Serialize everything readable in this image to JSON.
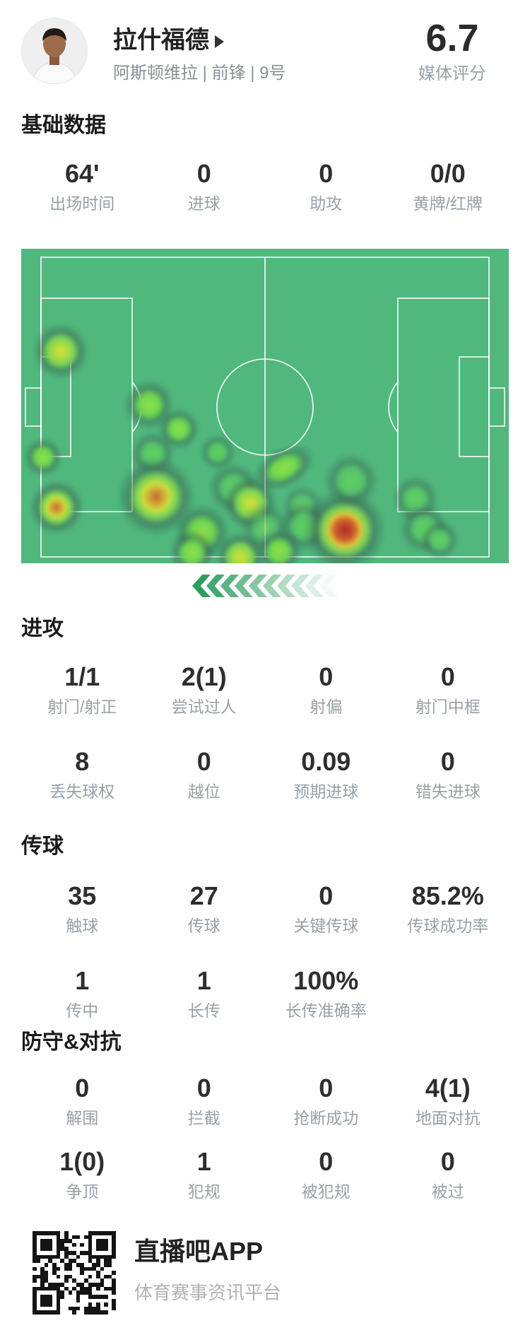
{
  "header": {
    "player_name": "拉什福德",
    "player_meta": "阿斯顿维拉 | 前锋 | 9号",
    "rating": "6.7",
    "rating_label": "媒体评分"
  },
  "sections": {
    "basic": {
      "title": "基础数据",
      "row1": [
        {
          "value": "64'",
          "label": "出场时间"
        },
        {
          "value": "0",
          "label": "进球"
        },
        {
          "value": "0",
          "label": "助攻"
        },
        {
          "value": "0/0",
          "label": "黄牌/红牌"
        }
      ]
    },
    "attack": {
      "title": "进攻",
      "row1": [
        {
          "value": "1/1",
          "label": "射门/射正"
        },
        {
          "value": "2(1)",
          "label": "尝试过人"
        },
        {
          "value": "0",
          "label": "射偏"
        },
        {
          "value": "0",
          "label": "射门中框"
        }
      ],
      "row2": [
        {
          "value": "8",
          "label": "丢失球权"
        },
        {
          "value": "0",
          "label": "越位"
        },
        {
          "value": "0.09",
          "label": "预期进球"
        },
        {
          "value": "0",
          "label": "错失进球"
        }
      ]
    },
    "passing": {
      "title": "传球",
      "row1": [
        {
          "value": "35",
          "label": "触球"
        },
        {
          "value": "27",
          "label": "传球"
        },
        {
          "value": "0",
          "label": "关键传球"
        },
        {
          "value": "85.2%",
          "label": "传球成功率"
        }
      ],
      "row2": [
        {
          "value": "1",
          "label": "传中"
        },
        {
          "value": "1",
          "label": "长传"
        },
        {
          "value": "100%",
          "label": "长传准确率"
        },
        {
          "value": "",
          "label": ""
        }
      ]
    },
    "defense": {
      "title": "防守&对抗",
      "row1": [
        {
          "value": "0",
          "label": "解围"
        },
        {
          "value": "0",
          "label": "拦截"
        },
        {
          "value": "0",
          "label": "抢断成功"
        },
        {
          "value": "4(1)",
          "label": "地面对抗"
        }
      ],
      "row2": [
        {
          "value": "1(0)",
          "label": "争顶"
        },
        {
          "value": "1",
          "label": "犯规"
        },
        {
          "value": "0",
          "label": "被犯规"
        },
        {
          "value": "0",
          "label": "被过"
        }
      ]
    }
  },
  "heatmap": {
    "pitch_color": "#50b87d",
    "line_color": "rgba(255,255,255,0.85)",
    "attack_direction": "left",
    "points": [
      {
        "x": 8.1,
        "y": 32.6,
        "s": 80,
        "heat": "yellow"
      },
      {
        "x": 4.5,
        "y": 66.3,
        "s": 56,
        "heat": "yg"
      },
      {
        "x": 7.2,
        "y": 82.2,
        "s": 78,
        "heat": "orange"
      },
      {
        "x": 26.2,
        "y": 49.7,
        "s": 72,
        "heat": "yg"
      },
      {
        "x": 32.3,
        "y": 57.3,
        "s": 60,
        "heat": "yg"
      },
      {
        "x": 27.0,
        "y": 65.2,
        "s": 64,
        "heat": "green"
      },
      {
        "x": 27.7,
        "y": 78.9,
        "s": 112,
        "heat": "orange"
      },
      {
        "x": 37.1,
        "y": 90.1,
        "s": 80,
        "heat": "yg"
      },
      {
        "x": 40.3,
        "y": 64.7,
        "s": 52,
        "heat": "green"
      },
      {
        "x": 43.5,
        "y": 76.0,
        "s": 72,
        "heat": "green"
      },
      {
        "x": 47.0,
        "y": 80.9,
        "s": 78,
        "heat": "yellow"
      },
      {
        "x": 44.9,
        "y": 98.0,
        "s": 72,
        "heat": "yellow"
      },
      {
        "x": 35.1,
        "y": 96.6,
        "s": 66,
        "heat": "yg"
      },
      {
        "x": 53.9,
        "y": 69.7,
        "s": 95,
        "w": 95,
        "h": 58,
        "rot": -28,
        "heat": "yg"
      },
      {
        "x": 50.0,
        "y": 88.8,
        "s": 70,
        "heat": "faint"
      },
      {
        "x": 57.7,
        "y": 81.8,
        "s": 60,
        "heat": "faint"
      },
      {
        "x": 58.0,
        "y": 88.3,
        "s": 72,
        "heat": "green"
      },
      {
        "x": 66.4,
        "y": 89.4,
        "s": 118,
        "heat": "red"
      },
      {
        "x": 67.7,
        "y": 73.7,
        "s": 78,
        "heat": "green"
      },
      {
        "x": 80.9,
        "y": 79.6,
        "s": 66,
        "heat": "green"
      },
      {
        "x": 82.6,
        "y": 89.0,
        "s": 70,
        "heat": "green"
      },
      {
        "x": 85.8,
        "y": 92.6,
        "s": 56,
        "heat": "green"
      },
      {
        "x": 52.9,
        "y": 96.2,
        "s": 66,
        "heat": "yg"
      }
    ],
    "chevron_color": "46,158,96",
    "chevron_count": 10
  },
  "footer": {
    "app_name": "直播吧APP",
    "tagline": "体育赛事资讯平台"
  }
}
